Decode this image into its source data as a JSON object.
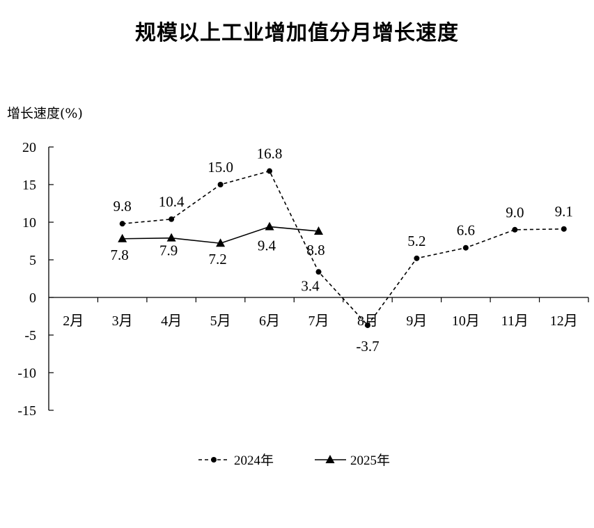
{
  "chart_data": {
    "type": "line",
    "title": "规模以上工业增加值分月增长速度",
    "ylabel": "增长速度(%)",
    "xlabel": "",
    "categories": [
      "2月",
      "3月",
      "4月",
      "5月",
      "6月",
      "7月",
      "8月",
      "9月",
      "10月",
      "11月",
      "12月"
    ],
    "ylim": [
      -15,
      20
    ],
    "yticks": [
      "20",
      "15",
      "10",
      "5",
      "0",
      "-5",
      "-10",
      "-15"
    ],
    "grid": false,
    "legend_position": "bottom",
    "series": [
      {
        "name": "2024年",
        "line_style": "dashed",
        "marker": "circle",
        "color": "#000000",
        "values": [
          null,
          9.8,
          10.4,
          15.0,
          16.8,
          3.4,
          -3.7,
          5.2,
          6.6,
          9.0,
          9.1
        ],
        "labels": [
          "",
          "9.8",
          "10.4",
          "15.0",
          "16.8",
          "3.4",
          "-3.7",
          "5.2",
          "6.6",
          "9.0",
          "9.1"
        ]
      },
      {
        "name": "2025年",
        "line_style": "solid",
        "marker": "triangle",
        "color": "#000000",
        "values": [
          null,
          7.8,
          7.9,
          7.2,
          9.4,
          8.8,
          null,
          null,
          null,
          null,
          null
        ],
        "labels": [
          "",
          "7.8",
          "7.9",
          "7.2",
          "9.4",
          "8.8",
          "",
          "",
          "",
          "",
          ""
        ]
      }
    ]
  }
}
